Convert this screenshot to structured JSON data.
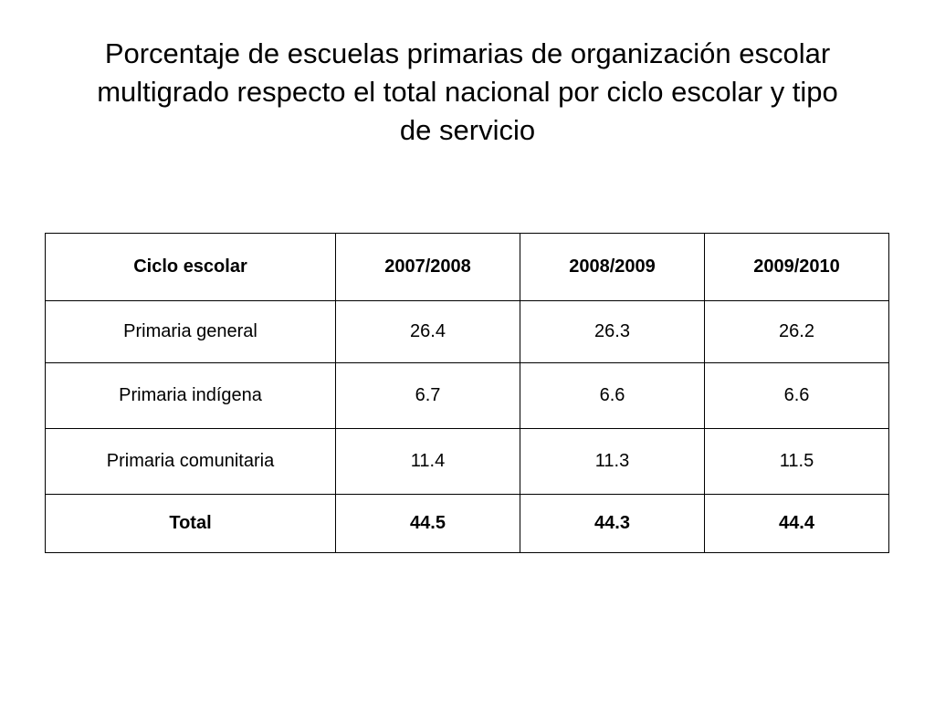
{
  "slide": {
    "title": "Porcentaje de escuelas primarias de organización escolar\nmultigrado respecto el total nacional por ciclo escolar y tipo\nde servicio"
  },
  "table": {
    "columns": [
      "Ciclo escolar",
      "2007/2008",
      "2008/2009",
      "2009/2010"
    ],
    "rows": [
      [
        "Primaria general",
        "26.4",
        "26.3",
        "26.2"
      ],
      [
        "Primaria indígena",
        "6.7",
        "6.6",
        "6.6"
      ],
      [
        "Primaria comunitaria",
        "11.4",
        "11.3",
        "11.5"
      ]
    ],
    "total": [
      "Total",
      "44.5",
      "44.3",
      "44.4"
    ]
  }
}
